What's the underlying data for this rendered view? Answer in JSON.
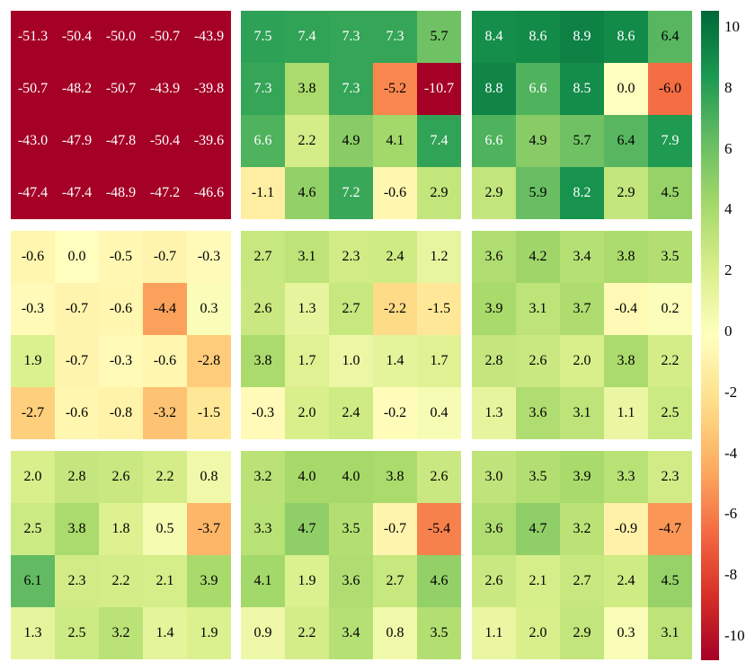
{
  "chart_data": {
    "type": "heatmap",
    "layout": {
      "panel_rows": 3,
      "panel_cols": 3,
      "cell_rows": 4,
      "cell_cols": 5
    },
    "vmin": -10,
    "vmax": 10,
    "colormap": "RdYlGn",
    "colorbar_ticks": [
      10,
      8,
      6,
      4,
      2,
      0,
      -2,
      -4,
      -6,
      -8,
      -10
    ],
    "panels": [
      [
        [
          [
            -51.3,
            -50.4,
            -50.0,
            -50.7,
            -43.9
          ],
          [
            -50.7,
            -48.2,
            -50.7,
            -43.9,
            -39.8
          ],
          [
            -43.0,
            -47.9,
            -47.8,
            -50.4,
            -39.6
          ],
          [
            -47.4,
            -47.4,
            -48.9,
            -47.2,
            -46.6
          ]
        ],
        [
          [
            7.5,
            7.4,
            7.3,
            7.3,
            5.7
          ],
          [
            7.3,
            3.8,
            7.3,
            -5.2,
            -10.7
          ],
          [
            6.6,
            2.2,
            4.9,
            4.1,
            7.4
          ],
          [
            -1.1,
            4.6,
            7.2,
            -0.6,
            2.9
          ]
        ],
        [
          [
            8.4,
            8.6,
            8.9,
            8.6,
            6.4
          ],
          [
            8.8,
            6.6,
            8.5,
            0.0,
            -6.0
          ],
          [
            6.6,
            4.9,
            5.7,
            6.4,
            7.9
          ],
          [
            2.9,
            5.9,
            8.2,
            2.9,
            4.5
          ]
        ]
      ],
      [
        [
          [
            -0.6,
            0.0,
            -0.5,
            -0.7,
            -0.3
          ],
          [
            -0.3,
            -0.7,
            -0.6,
            -4.4,
            0.3
          ],
          [
            1.9,
            -0.7,
            -0.3,
            -0.6,
            -2.8
          ],
          [
            -2.7,
            -0.6,
            -0.8,
            -3.2,
            -1.5
          ]
        ],
        [
          [
            2.7,
            3.1,
            2.3,
            2.4,
            1.2
          ],
          [
            2.6,
            1.3,
            2.7,
            -2.2,
            -1.5
          ],
          [
            3.8,
            1.7,
            1.0,
            1.4,
            1.7
          ],
          [
            -0.3,
            2.0,
            2.4,
            -0.2,
            0.4
          ]
        ],
        [
          [
            3.6,
            4.2,
            3.4,
            3.8,
            3.5
          ],
          [
            3.9,
            3.1,
            3.7,
            -0.4,
            0.2
          ],
          [
            2.8,
            2.6,
            2.0,
            3.8,
            2.2
          ],
          [
            1.3,
            3.6,
            3.1,
            1.1,
            2.5
          ]
        ]
      ],
      [
        [
          [
            2.0,
            2.8,
            2.6,
            2.2,
            0.8
          ],
          [
            2.5,
            3.8,
            1.8,
            0.5,
            -3.7
          ],
          [
            6.1,
            2.3,
            2.2,
            2.1,
            3.9
          ],
          [
            1.3,
            2.5,
            3.2,
            1.4,
            1.9
          ]
        ],
        [
          [
            3.2,
            4.0,
            4.0,
            3.8,
            2.6
          ],
          [
            3.3,
            4.7,
            3.5,
            -0.7,
            -5.4
          ],
          [
            4.1,
            1.9,
            3.6,
            2.7,
            4.6
          ],
          [
            0.9,
            2.2,
            3.4,
            0.8,
            3.5
          ]
        ],
        [
          [
            3.0,
            3.5,
            3.9,
            3.3,
            2.3
          ],
          [
            3.6,
            4.7,
            3.2,
            -0.9,
            -4.7
          ],
          [
            2.6,
            2.1,
            2.7,
            2.4,
            4.5
          ],
          [
            1.1,
            2.0,
            2.9,
            0.3,
            3.1
          ]
        ]
      ]
    ]
  }
}
